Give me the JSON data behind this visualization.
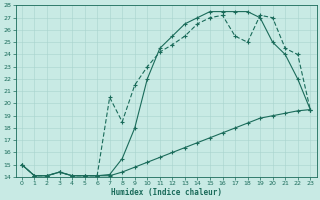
{
  "xlabel": "Humidex (Indice chaleur)",
  "xlim": [
    -0.5,
    23.5
  ],
  "ylim": [
    14,
    28
  ],
  "xticks": [
    0,
    1,
    2,
    3,
    4,
    5,
    6,
    7,
    8,
    9,
    10,
    11,
    12,
    13,
    14,
    15,
    16,
    17,
    18,
    19,
    20,
    21,
    22,
    23
  ],
  "yticks": [
    14,
    15,
    16,
    17,
    18,
    19,
    20,
    21,
    22,
    23,
    24,
    25,
    26,
    27,
    28
  ],
  "bg_color": "#c8eae4",
  "grid_color": "#a8d4ce",
  "line_color": "#1a6b5a",
  "line1_x": [
    0,
    1,
    2,
    3,
    4,
    5,
    6,
    7,
    8,
    9,
    10,
    11,
    12,
    13,
    14,
    15,
    16,
    17,
    18,
    19,
    20,
    21,
    22,
    23
  ],
  "line1_y": [
    15.0,
    14.1,
    14.1,
    14.4,
    14.1,
    14.1,
    14.1,
    14.1,
    14.4,
    14.8,
    15.2,
    15.6,
    16.0,
    16.4,
    16.8,
    17.2,
    17.6,
    18.0,
    18.4,
    18.8,
    19.0,
    19.2,
    19.4,
    19.5
  ],
  "line2_x": [
    0,
    1,
    2,
    3,
    4,
    5,
    6,
    7,
    8,
    9,
    10,
    11,
    12,
    13,
    14,
    15,
    16,
    17,
    18,
    19,
    20,
    21,
    22,
    23
  ],
  "line2_y": [
    15.0,
    14.1,
    14.1,
    14.4,
    14.1,
    14.1,
    14.1,
    20.5,
    18.5,
    21.5,
    23.0,
    24.2,
    24.8,
    25.5,
    26.5,
    27.0,
    27.2,
    25.5,
    25.0,
    27.2,
    27.0,
    24.5,
    24.0,
    19.5
  ],
  "line3_x": [
    0,
    1,
    2,
    3,
    4,
    5,
    6,
    7,
    8,
    9,
    10,
    11,
    12,
    13,
    14,
    15,
    16,
    17,
    18,
    19,
    20,
    21,
    22,
    23
  ],
  "line3_y": [
    15.0,
    14.1,
    14.1,
    14.4,
    14.1,
    14.1,
    14.1,
    14.2,
    15.5,
    18.0,
    22.0,
    24.5,
    25.5,
    26.5,
    27.0,
    27.5,
    27.5,
    27.5,
    27.5,
    27.0,
    25.0,
    24.0,
    22.0,
    19.5
  ]
}
